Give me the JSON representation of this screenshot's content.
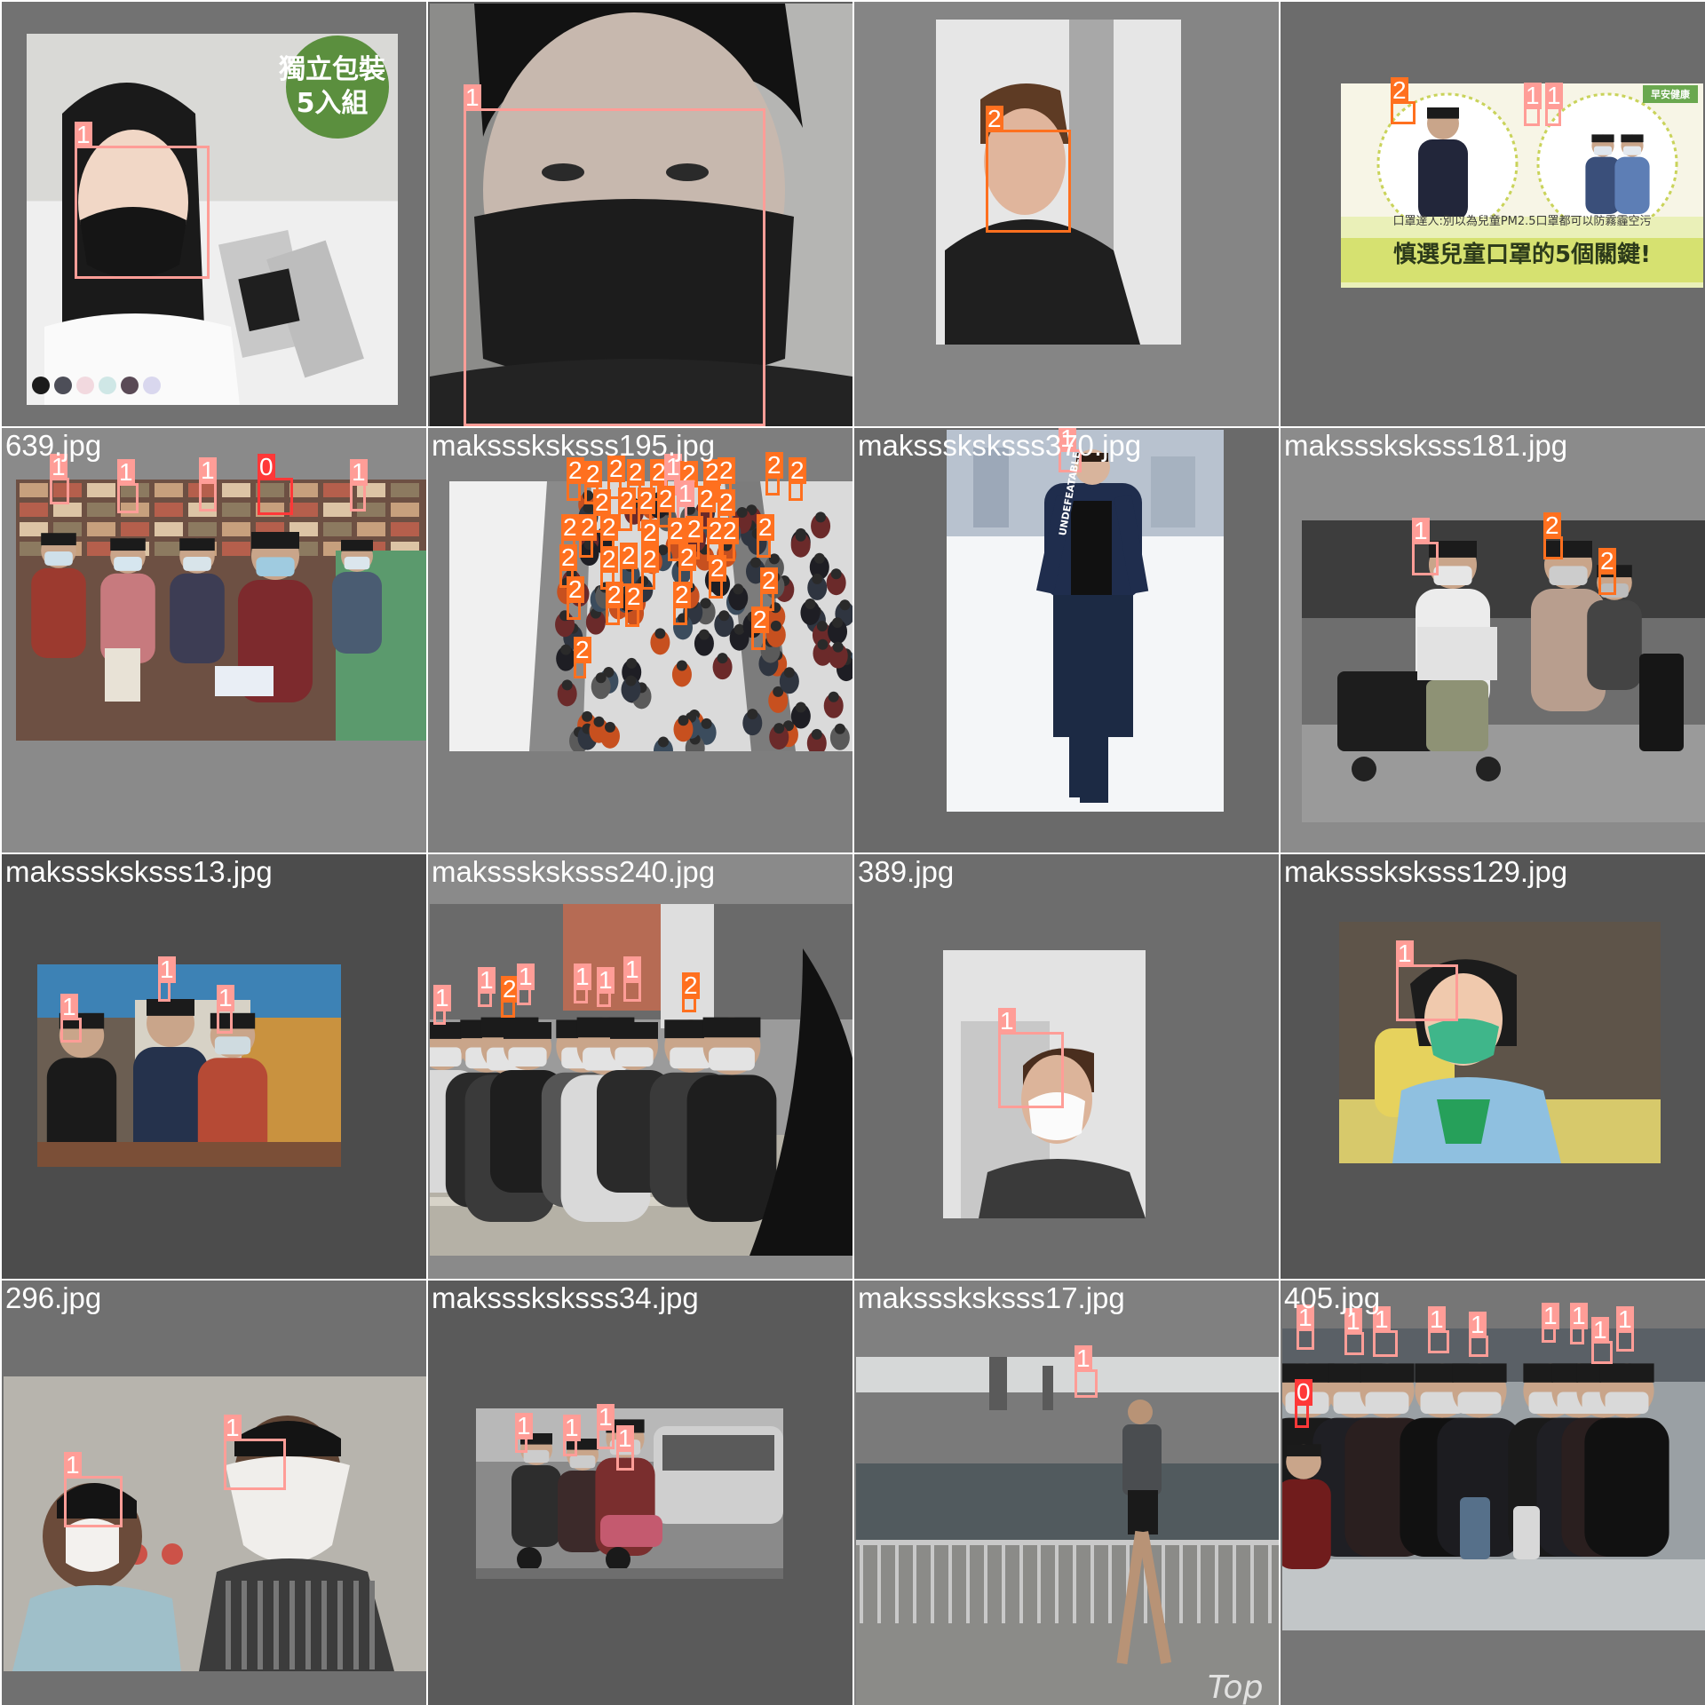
{
  "colors": {
    "class_0": "#ff3838",
    "class_1": "#ff9d97",
    "class_2": "#ff701f",
    "tile_bg_light": "#858585",
    "tile_bg_dark": "#555555"
  },
  "tiles": [
    {
      "caption": "",
      "bg": "#727272",
      "scene": "mask-ad",
      "detections": [
        {
          "label": "1",
          "cls": 1
        }
      ]
    },
    {
      "caption": "",
      "bg": "#606060",
      "scene": "close-face",
      "detections": [
        {
          "label": "1",
          "cls": 1
        }
      ]
    },
    {
      "caption": "",
      "bg": "#858585",
      "scene": "portrait",
      "detections": [
        {
          "label": "2",
          "cls": 2
        }
      ]
    },
    {
      "caption": "",
      "bg": "#6c6c6c",
      "scene": "banner",
      "banner_texts": [
        "口罩達人:別以為兒童PM2.5口罩都可以防霧霾空污",
        "慎選兒童口罩的5個關鍵!",
        "早安健康"
      ],
      "detections": [
        {
          "label": "2",
          "cls": 2
        },
        {
          "label": "1",
          "cls": 1
        },
        {
          "label": "1",
          "cls": 1
        }
      ]
    },
    {
      "caption": "639.jpg",
      "bg": "#8a8a8a",
      "scene": "shop",
      "detections": [
        {
          "label": "1",
          "cls": 1
        },
        {
          "label": "1",
          "cls": 1
        },
        {
          "label": "1",
          "cls": 1
        },
        {
          "label": "0",
          "cls": 0
        },
        {
          "label": "1",
          "cls": 1
        }
      ]
    },
    {
      "caption": "maksssksksss195.jpg",
      "bg": "#7e7e7e",
      "scene": "escalator",
      "detections": [
        {
          "label": "2",
          "cls": 2
        },
        {
          "label": "2",
          "cls": 2
        },
        {
          "label": "2",
          "cls": 2
        },
        {
          "label": "2",
          "cls": 2
        },
        {
          "label": "2",
          "cls": 2
        },
        {
          "label": "1",
          "cls": 1
        },
        {
          "label": "2",
          "cls": 2
        },
        {
          "label": "2",
          "cls": 2
        },
        {
          "label": "2",
          "cls": 2
        },
        {
          "label": "2",
          "cls": 2
        },
        {
          "label": "2",
          "cls": 2
        },
        {
          "label": "2",
          "cls": 2
        },
        {
          "label": "2",
          "cls": 2
        },
        {
          "label": "2",
          "cls": 2
        },
        {
          "label": "2",
          "cls": 2
        },
        {
          "label": "1",
          "cls": 1
        },
        {
          "label": "2",
          "cls": 2
        },
        {
          "label": "2",
          "cls": 2
        },
        {
          "label": "2",
          "cls": 2
        },
        {
          "label": "2",
          "cls": 2
        },
        {
          "label": "2",
          "cls": 2
        },
        {
          "label": "2",
          "cls": 2
        },
        {
          "label": "2",
          "cls": 2
        },
        {
          "label": "2",
          "cls": 2
        },
        {
          "label": "2",
          "cls": 2
        },
        {
          "label": "2",
          "cls": 2
        },
        {
          "label": "2",
          "cls": 2
        },
        {
          "label": "2",
          "cls": 2
        },
        {
          "label": "2",
          "cls": 2
        },
        {
          "label": "2",
          "cls": 2
        },
        {
          "label": "2",
          "cls": 2
        },
        {
          "label": "2",
          "cls": 2
        },
        {
          "label": "2",
          "cls": 2
        },
        {
          "label": "2",
          "cls": 2
        },
        {
          "label": "2",
          "cls": 2
        },
        {
          "label": "2",
          "cls": 2
        },
        {
          "label": "2",
          "cls": 2
        },
        {
          "label": "2",
          "cls": 2
        },
        {
          "label": "2",
          "cls": 2
        },
        {
          "label": "2",
          "cls": 2
        }
      ]
    },
    {
      "caption": "maksssksksss370.jpg",
      "bg": "#6a6a6a",
      "scene": "walker",
      "shirt_text": "UNDEFEATABLE",
      "detections": [
        {
          "label": "1",
          "cls": 1
        }
      ]
    },
    {
      "caption": "maksssksksss181.jpg",
      "bg": "#8b8b8b",
      "scene": "airport",
      "detections": [
        {
          "label": "1",
          "cls": 1
        },
        {
          "label": "2",
          "cls": 2
        },
        {
          "label": "2",
          "cls": 2
        }
      ]
    },
    {
      "caption": "maksssksksss13.jpg",
      "bg": "#4c4c4c",
      "scene": "clinic",
      "detections": [
        {
          "label": "1",
          "cls": 1
        },
        {
          "label": "1",
          "cls": 1
        },
        {
          "label": "1",
          "cls": 1
        }
      ]
    },
    {
      "caption": "maksssksksss240.jpg",
      "bg": "#8a8a8a",
      "scene": "street",
      "detections": [
        {
          "label": "1",
          "cls": 1
        },
        {
          "label": "1",
          "cls": 1
        },
        {
          "label": "2",
          "cls": 2
        },
        {
          "label": "1",
          "cls": 1
        },
        {
          "label": "1",
          "cls": 1
        },
        {
          "label": "1",
          "cls": 1
        },
        {
          "label": "1",
          "cls": 1
        },
        {
          "label": "2",
          "cls": 2
        }
      ]
    },
    {
      "caption": "389.jpg",
      "bg": "#6d6d6d",
      "scene": "selfie",
      "detections": [
        {
          "label": "1",
          "cls": 1
        }
      ]
    },
    {
      "caption": "maksssksksss129.jpg",
      "bg": "#555555",
      "scene": "girl",
      "detections": [
        {
          "label": "1",
          "cls": 1
        }
      ]
    },
    {
      "caption": "296.jpg",
      "bg": "#707070",
      "scene": "smog",
      "detections": [
        {
          "label": "1",
          "cls": 1
        },
        {
          "label": "1",
          "cls": 1
        }
      ]
    },
    {
      "caption": "maksssksksss34.jpg",
      "bg": "#5a5a5a",
      "scene": "traffic",
      "detections": [
        {
          "label": "1",
          "cls": 1
        },
        {
          "label": "1",
          "cls": 1
        },
        {
          "label": "1",
          "cls": 1
        },
        {
          "label": "1",
          "cls": 1
        }
      ]
    },
    {
      "caption": "maksssksksss17.jpg",
      "bg": "#808080",
      "scene": "runner",
      "watermark": "Top",
      "detections": [
        {
          "label": "1",
          "cls": 1
        }
      ]
    },
    {
      "caption": "405.jpg",
      "bg": "#767676",
      "scene": "crowd",
      "detections": [
        {
          "label": "1",
          "cls": 1
        },
        {
          "label": "1",
          "cls": 1
        },
        {
          "label": "1",
          "cls": 1
        },
        {
          "label": "1",
          "cls": 1
        },
        {
          "label": "1",
          "cls": 1
        },
        {
          "label": "1",
          "cls": 1
        },
        {
          "label": "1",
          "cls": 1
        },
        {
          "label": "1",
          "cls": 1
        },
        {
          "label": "1",
          "cls": 1
        },
        {
          "label": "0",
          "cls": 0
        }
      ]
    }
  ],
  "overlay_texts": {
    "mask_ad": "獨立包裝 5入組"
  }
}
